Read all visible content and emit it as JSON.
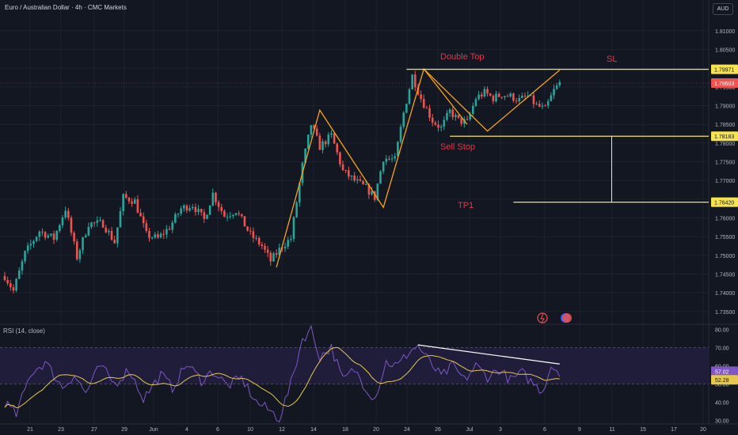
{
  "header": {
    "title": "Euro / Australian Dollar · 4h · CMC Markets",
    "currency": "AUD"
  },
  "colors": {
    "background": "#131722",
    "up": "#26a69a",
    "down": "#ef5350",
    "pattern": "#f7a21b",
    "level": "#f5e34f",
    "annotation": "#e5354a",
    "rsi": "#7e57c2",
    "rsi_ma": "#e5c84b",
    "grid": "#1e222d",
    "rsi_band": "#1f1d3a"
  },
  "chart_data": [
    {
      "type": "candlestick",
      "title": "Euro / Australian Dollar · 4h · CMC Markets",
      "ylim": [
        1.732,
        1.814
      ],
      "y_ticks": [
        "1.81000",
        "1.80500",
        "1.80000",
        "1.79500",
        "1.79000",
        "1.78500",
        "1.78000",
        "1.77500",
        "1.77000",
        "1.76500",
        "1.76000",
        "1.75500",
        "1.75000",
        "1.74500",
        "1.74000",
        "1.73500"
      ],
      "x_ticks": [
        "21",
        "23",
        "27",
        "29",
        "Jun",
        "4",
        "6",
        "10",
        "12",
        "14",
        "18",
        "20",
        "24",
        "26",
        "Jul",
        "3",
        "6",
        "9",
        "11",
        "15",
        "17",
        "20"
      ],
      "price_labels": [
        {
          "label": "1.79971",
          "value": 1.79971,
          "bg": "#f5e34f"
        },
        {
          "label": "1.79603",
          "value": 1.79603,
          "bg": "#ef5350"
        },
        {
          "label": "1.78183",
          "value": 1.78183,
          "bg": "#f5e34f"
        },
        {
          "label": "1.76420",
          "value": 1.7642,
          "bg": "#f5e34f"
        }
      ],
      "anchors": [
        {
          "i": 0,
          "p": 1.7445
        },
        {
          "i": 3,
          "p": 1.7405
        },
        {
          "i": 7,
          "p": 1.7505
        },
        {
          "i": 12,
          "p": 1.7565
        },
        {
          "i": 17,
          "p": 1.7545
        },
        {
          "i": 21,
          "p": 1.7625
        },
        {
          "i": 25,
          "p": 1.7495
        },
        {
          "i": 29,
          "p": 1.7585
        },
        {
          "i": 34,
          "p": 1.7585
        },
        {
          "i": 38,
          "p": 1.7535
        },
        {
          "i": 41,
          "p": 1.7655
        },
        {
          "i": 45,
          "p": 1.7645
        },
        {
          "i": 49,
          "p": 1.7555
        },
        {
          "i": 53,
          "p": 1.7545
        },
        {
          "i": 57,
          "p": 1.7575
        },
        {
          "i": 61,
          "p": 1.7625
        },
        {
          "i": 65,
          "p": 1.7635
        },
        {
          "i": 69,
          "p": 1.7595
        },
        {
          "i": 72,
          "p": 1.7665
        },
        {
          "i": 76,
          "p": 1.7605
        },
        {
          "i": 80,
          "p": 1.762
        },
        {
          "i": 85,
          "p": 1.7555
        },
        {
          "i": 89,
          "p": 1.7525
        },
        {
          "i": 92,
          "p": 1.7485
        },
        {
          "i": 96,
          "p": 1.7525
        },
        {
          "i": 99,
          "p": 1.7545
        },
        {
          "i": 103,
          "p": 1.774
        },
        {
          "i": 106,
          "p": 1.785
        },
        {
          "i": 109,
          "p": 1.779
        },
        {
          "i": 113,
          "p": 1.782
        },
        {
          "i": 117,
          "p": 1.7725
        },
        {
          "i": 121,
          "p": 1.77
        },
        {
          "i": 125,
          "p": 1.768
        },
        {
          "i": 128,
          "p": 1.7655
        },
        {
          "i": 131,
          "p": 1.776
        },
        {
          "i": 135,
          "p": 1.7755
        },
        {
          "i": 138,
          "p": 1.788
        },
        {
          "i": 141,
          "p": 1.798
        },
        {
          "i": 144,
          "p": 1.792
        },
        {
          "i": 148,
          "p": 1.786
        },
        {
          "i": 151,
          "p": 1.784
        },
        {
          "i": 154,
          "p": 1.7885
        },
        {
          "i": 157,
          "p": 1.786
        },
        {
          "i": 160,
          "p": 1.7855
        },
        {
          "i": 163,
          "p": 1.792
        },
        {
          "i": 166,
          "p": 1.7935
        },
        {
          "i": 169,
          "p": 1.792
        },
        {
          "i": 172,
          "p": 1.793
        },
        {
          "i": 175,
          "p": 1.7925
        },
        {
          "i": 178,
          "p": 1.7915
        },
        {
          "i": 181,
          "p": 1.7925
        },
        {
          "i": 184,
          "p": 1.79
        },
        {
          "i": 187,
          "p": 1.789
        },
        {
          "i": 190,
          "p": 1.794
        },
        {
          "i": 192,
          "p": 1.796
        }
      ],
      "n_candles": 193,
      "pattern_points": [
        {
          "i": 94,
          "p": 1.7468
        },
        {
          "i": 109,
          "p": 1.7888
        },
        {
          "i": 131,
          "p": 1.7628
        },
        {
          "i": 145,
          "p": 1.7998
        },
        {
          "i": 167,
          "p": 1.7832
        },
        {
          "i": 192,
          "p": 1.7995
        }
      ],
      "wedge_upper": [
        {
          "i": 145,
          "p": 1.7998
        },
        {
          "i": 160,
          "p": 1.785
        }
      ],
      "levels": [
        {
          "name": "SL",
          "value": 1.79971,
          "from_i": 139
        },
        {
          "name": "Sell Stop",
          "value": 1.78183,
          "from_i": 154
        },
        {
          "name": "TP1",
          "value": 1.7642,
          "from_i": 176
        }
      ],
      "measure": {
        "i": 210,
        "from": 1.78183,
        "to": 1.7642
      },
      "annotations": [
        "Double Top",
        "SL",
        "Sell Stop",
        "TP1"
      ]
    },
    {
      "type": "line",
      "title": "RSI (14, close)",
      "ylim": [
        28,
        82
      ],
      "y_ticks": [
        "80.00",
        "70.00",
        "60.00",
        "50.00",
        "40.00",
        "30.00"
      ],
      "band": [
        70,
        50
      ],
      "value_labels": [
        {
          "label": "57.02",
          "value": 57.02
        },
        {
          "label": "52.28",
          "value": 52.28
        }
      ],
      "rsi_anchors": [
        {
          "i": 0,
          "v": 40
        },
        {
          "i": 4,
          "v": 33
        },
        {
          "i": 9,
          "v": 56
        },
        {
          "i": 14,
          "v": 62
        },
        {
          "i": 20,
          "v": 48
        },
        {
          "i": 24,
          "v": 55
        },
        {
          "i": 28,
          "v": 45
        },
        {
          "i": 33,
          "v": 60
        },
        {
          "i": 38,
          "v": 50
        },
        {
          "i": 43,
          "v": 58
        },
        {
          "i": 48,
          "v": 42
        },
        {
          "i": 54,
          "v": 55
        },
        {
          "i": 58,
          "v": 48
        },
        {
          "i": 63,
          "v": 61
        },
        {
          "i": 68,
          "v": 52
        },
        {
          "i": 72,
          "v": 57
        },
        {
          "i": 77,
          "v": 49
        },
        {
          "i": 82,
          "v": 53
        },
        {
          "i": 87,
          "v": 40
        },
        {
          "i": 92,
          "v": 35
        },
        {
          "i": 95,
          "v": 31
        },
        {
          "i": 99,
          "v": 50
        },
        {
          "i": 103,
          "v": 75
        },
        {
          "i": 106,
          "v": 80
        },
        {
          "i": 109,
          "v": 65
        },
        {
          "i": 113,
          "v": 70
        },
        {
          "i": 117,
          "v": 52
        },
        {
          "i": 121,
          "v": 58
        },
        {
          "i": 125,
          "v": 48
        },
        {
          "i": 128,
          "v": 42
        },
        {
          "i": 132,
          "v": 62
        },
        {
          "i": 136,
          "v": 60
        },
        {
          "i": 140,
          "v": 68
        },
        {
          "i": 143,
          "v": 71
        },
        {
          "i": 147,
          "v": 62
        },
        {
          "i": 151,
          "v": 54
        },
        {
          "i": 155,
          "v": 60
        },
        {
          "i": 159,
          "v": 52
        },
        {
          "i": 163,
          "v": 60
        },
        {
          "i": 167,
          "v": 54
        },
        {
          "i": 171,
          "v": 58
        },
        {
          "i": 175,
          "v": 52
        },
        {
          "i": 179,
          "v": 56
        },
        {
          "i": 183,
          "v": 50
        },
        {
          "i": 186,
          "v": 46
        },
        {
          "i": 189,
          "v": 60
        },
        {
          "i": 192,
          "v": 57
        }
      ],
      "divergence_line": [
        {
          "i": 143,
          "v": 71.5
        },
        {
          "i": 192,
          "v": 61
        }
      ]
    }
  ]
}
